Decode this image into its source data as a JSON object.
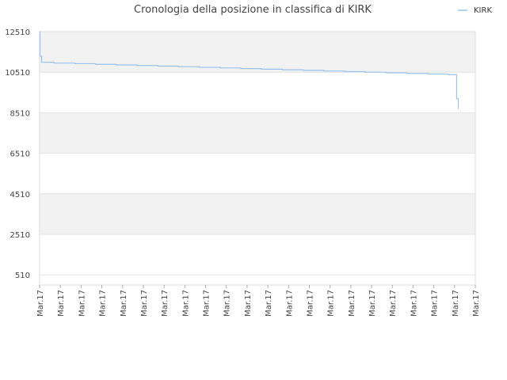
{
  "chart_data": {
    "type": "line",
    "title": "Cronologia della posizione in classifica di KIRK",
    "xlabel": "",
    "ylabel": "",
    "y_axis_inverted": true,
    "ylim": [
      12510,
      10
    ],
    "y_ticks": [
      510,
      2510,
      4510,
      6510,
      8510,
      10510,
      12510
    ],
    "y_tick_labels": [
      "510",
      "2510",
      "4510",
      "6510",
      "8510",
      "10510",
      "12510"
    ],
    "x_tick_labels": [
      "Mar.17",
      "Mar.17",
      "Mar.17",
      "Mar.17",
      "Mar.17",
      "Mar.17",
      "Mar.17",
      "Mar.17",
      "Mar.17",
      "Mar.17",
      "Mar.17",
      "Mar.17",
      "Mar.17",
      "Mar.17",
      "Mar.17",
      "Mar.17",
      "Mar.17",
      "Mar.17",
      "Mar.17",
      "Mar.17",
      "Mar.17",
      "Mar.17"
    ],
    "grid": true,
    "legend_position": "top-right",
    "series": [
      {
        "name": "KIRK",
        "color": "#99c2f0",
        "step": true,
        "points": [
          {
            "x": 0.0,
            "y": 12510
          },
          {
            "x": 0.02,
            "y": 11300
          },
          {
            "x": 0.1,
            "y": 11000
          },
          {
            "x": 0.7,
            "y": 10960
          },
          {
            "x": 1.7,
            "y": 10930
          },
          {
            "x": 2.7,
            "y": 10900
          },
          {
            "x": 3.7,
            "y": 10870
          },
          {
            "x": 4.7,
            "y": 10840
          },
          {
            "x": 5.7,
            "y": 10810
          },
          {
            "x": 6.7,
            "y": 10780
          },
          {
            "x": 7.7,
            "y": 10750
          },
          {
            "x": 8.7,
            "y": 10720
          },
          {
            "x": 9.7,
            "y": 10690
          },
          {
            "x": 10.7,
            "y": 10660
          },
          {
            "x": 11.7,
            "y": 10630
          },
          {
            "x": 12.7,
            "y": 10600
          },
          {
            "x": 13.7,
            "y": 10570
          },
          {
            "x": 14.7,
            "y": 10540
          },
          {
            "x": 15.7,
            "y": 10510
          },
          {
            "x": 16.7,
            "y": 10480
          },
          {
            "x": 17.7,
            "y": 10450
          },
          {
            "x": 18.7,
            "y": 10420
          },
          {
            "x": 19.7,
            "y": 10390
          },
          {
            "x": 20.1,
            "y": 10370
          },
          {
            "x": 20.1,
            "y": 9200
          },
          {
            "x": 20.18,
            "y": 8700
          }
        ]
      }
    ]
  }
}
